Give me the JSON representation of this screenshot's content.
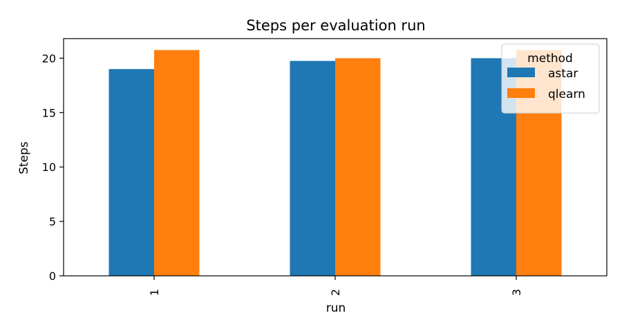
{
  "chart_data": {
    "type": "bar",
    "title": "Steps per evaluation run",
    "xlabel": "run",
    "ylabel": "Steps",
    "categories": [
      "1",
      "2",
      "3"
    ],
    "series": [
      {
        "name": "astar",
        "values": [
          19.0,
          19.75,
          20.0
        ],
        "color": "#1f77b4"
      },
      {
        "name": "qlearn",
        "values": [
          20.75,
          20.0,
          20.75
        ],
        "color": "#ff7f0e"
      }
    ],
    "ylim": [
      0,
      21.8
    ],
    "yticks": [
      0,
      5,
      10,
      15,
      20
    ],
    "grid": false,
    "legend": {
      "title": "method",
      "placement": "top-right"
    },
    "xtick_rotation": "vertical"
  }
}
